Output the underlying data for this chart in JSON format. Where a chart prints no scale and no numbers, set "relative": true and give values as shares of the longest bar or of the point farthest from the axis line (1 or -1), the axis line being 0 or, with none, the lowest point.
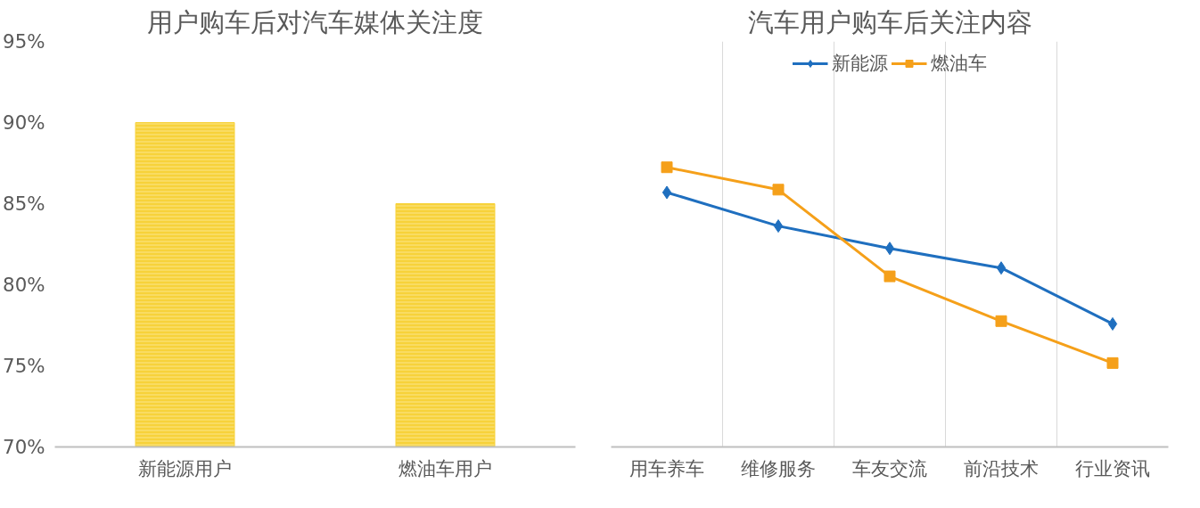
{
  "chart_data": [
    {
      "type": "bar",
      "title": "用户购车后对汽车媒体关注度",
      "categories": [
        "新能源用户",
        "燃油车用户"
      ],
      "values": [
        90,
        85
      ],
      "color": "#f7d23a",
      "ylim": [
        70,
        95
      ],
      "yticks": [
        {
          "value": 70,
          "label": "70%"
        },
        {
          "value": 75,
          "label": "75%"
        },
        {
          "value": 80,
          "label": "80%"
        },
        {
          "value": 85,
          "label": "85%"
        },
        {
          "value": 90,
          "label": "90%"
        },
        {
          "value": 95,
          "label": "95%"
        }
      ],
      "grid": false
    },
    {
      "type": "line",
      "title": "汽车用户购车后关注内容",
      "categories": [
        "用车养车",
        "维修服务",
        "车友交流",
        "前沿技术",
        "行业资讯"
      ],
      "relative": true,
      "grid": "x",
      "legend": "top",
      "series": [
        {
          "name": "新能源",
          "color": "#1f6fbf",
          "marker": "diamond",
          "values": [
            0.91,
            0.79,
            0.71,
            0.64,
            0.44
          ]
        },
        {
          "name": "燃油车",
          "color": "#f5a01a",
          "marker": "square",
          "values": [
            1.0,
            0.92,
            0.61,
            0.45,
            0.3
          ]
        }
      ]
    }
  ]
}
